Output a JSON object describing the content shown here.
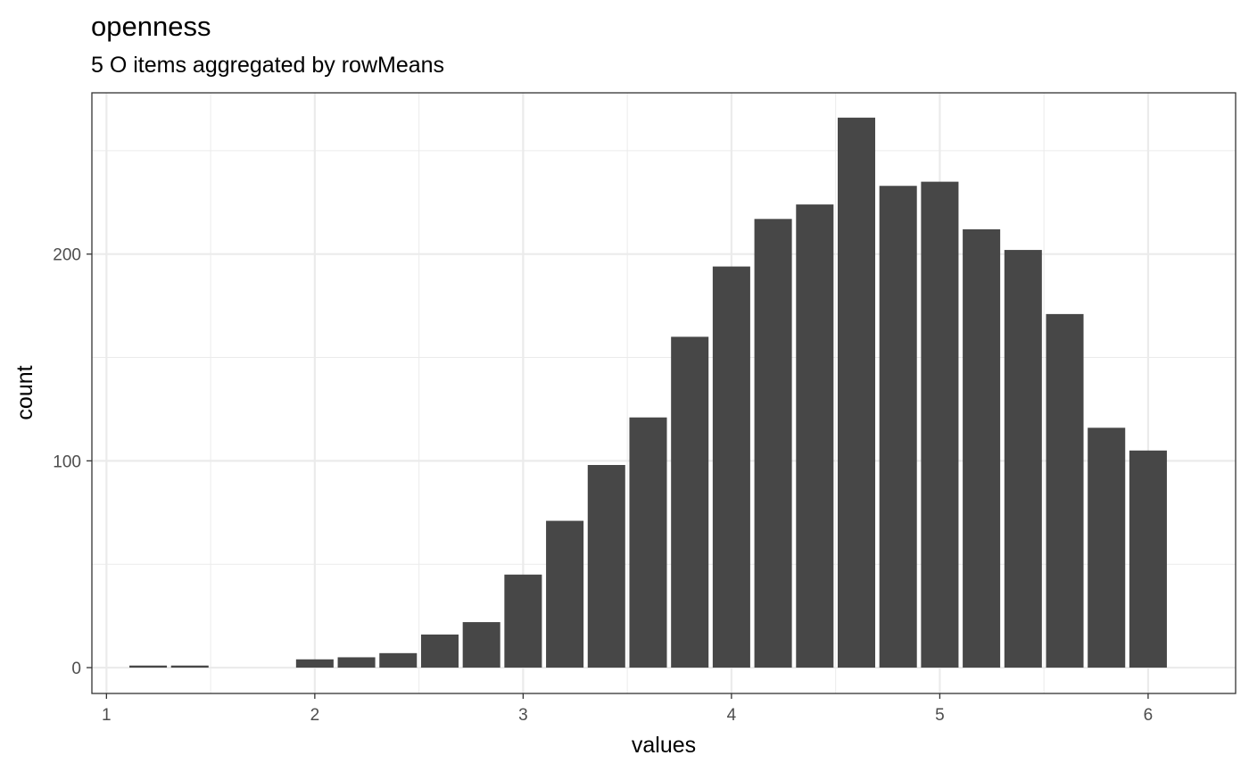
{
  "chart_data": {
    "type": "bar",
    "title": "openness",
    "subtitle": "5 O items aggregated by rowMeans",
    "xlabel": "values",
    "ylabel": "count",
    "xlim": [
      0.93,
      6.42
    ],
    "ylim": [
      -12.5,
      278
    ],
    "x_ticks": [
      1,
      2,
      3,
      4,
      5,
      6
    ],
    "y_ticks": [
      0,
      100,
      200
    ],
    "x_minor_ticks": [
      1.5,
      2.5,
      3.5,
      4.5,
      5.5
    ],
    "y_minor_ticks": [
      50,
      150,
      250
    ],
    "grid": true,
    "bar_width": 0.18,
    "bar_color": "#474747",
    "bins": [
      {
        "x": 1.2,
        "value": 1
      },
      {
        "x": 1.4,
        "value": 1
      },
      {
        "x": 1.6,
        "value": 0
      },
      {
        "x": 1.8,
        "value": 0
      },
      {
        "x": 2.0,
        "value": 4
      },
      {
        "x": 2.2,
        "value": 5
      },
      {
        "x": 2.4,
        "value": 7
      },
      {
        "x": 2.6,
        "value": 16
      },
      {
        "x": 2.8,
        "value": 22
      },
      {
        "x": 3.0,
        "value": 45
      },
      {
        "x": 3.2,
        "value": 71
      },
      {
        "x": 3.4,
        "value": 98
      },
      {
        "x": 3.6,
        "value": 121
      },
      {
        "x": 3.8,
        "value": 160
      },
      {
        "x": 4.0,
        "value": 194
      },
      {
        "x": 4.2,
        "value": 217
      },
      {
        "x": 4.4,
        "value": 224
      },
      {
        "x": 4.6,
        "value": 266
      },
      {
        "x": 4.8,
        "value": 233
      },
      {
        "x": 5.0,
        "value": 235
      },
      {
        "x": 5.2,
        "value": 212
      },
      {
        "x": 5.4,
        "value": 202
      },
      {
        "x": 5.6,
        "value": 171
      },
      {
        "x": 5.8,
        "value": 116
      },
      {
        "x": 6.0,
        "value": 105
      }
    ]
  }
}
